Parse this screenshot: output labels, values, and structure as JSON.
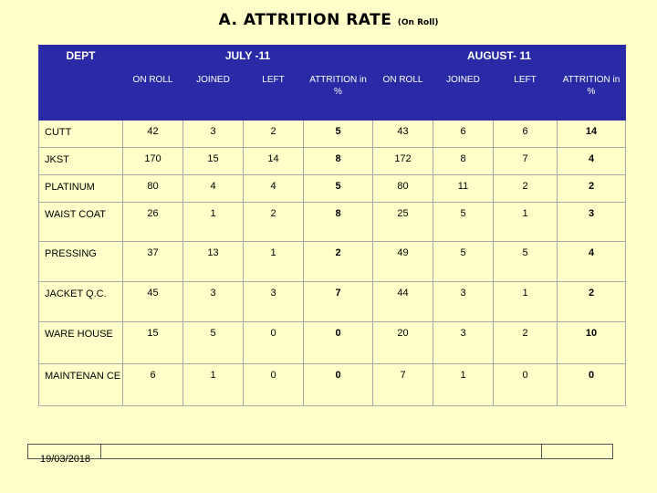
{
  "title": "A. ATTRITION RATE",
  "subtitle": "(On Roll)",
  "header": {
    "dept": "DEPT",
    "month1": "JULY -11",
    "month2": "AUGUST- 11",
    "columns": [
      "ON ROLL",
      "JOINED",
      "LEFT",
      "ATTRITION in %",
      "ON ROLL",
      "JOINED",
      "LEFT",
      "ATTRITION in %"
    ]
  },
  "rows": [
    {
      "dept": "CUTT",
      "values": [
        "42",
        "3",
        "2",
        "5",
        "43",
        "6",
        "6",
        "14"
      ]
    },
    {
      "dept": "JKST",
      "values": [
        "170",
        "15",
        "14",
        "8",
        "172",
        "8",
        "7",
        "4"
      ]
    },
    {
      "dept": "PLATINUM",
      "values": [
        "80",
        "4",
        "4",
        "5",
        "80",
        "11",
        "2",
        "2"
      ]
    },
    {
      "dept": "WAIST COAT",
      "values": [
        "26",
        "1",
        "2",
        "8",
        "25",
        "5",
        "1",
        "3"
      ]
    },
    {
      "dept": "PRESSING",
      "values": [
        "37",
        "13",
        "1",
        "2",
        "49",
        "5",
        "5",
        "4"
      ]
    },
    {
      "dept": "JACKET Q.C.",
      "values": [
        "45",
        "3",
        "3",
        "7",
        "44",
        "3",
        "1",
        "2"
      ]
    },
    {
      "dept": "WARE HOUSE",
      "values": [
        "15",
        "5",
        "0",
        "0",
        "20",
        "3",
        "2",
        "10"
      ]
    },
    {
      "dept": "MAINTENAN CE",
      "values": [
        "6",
        "1",
        "0",
        "0",
        "7",
        "1",
        "0",
        "0"
      ]
    }
  ],
  "footer": {
    "date": "19/03/2018"
  }
}
